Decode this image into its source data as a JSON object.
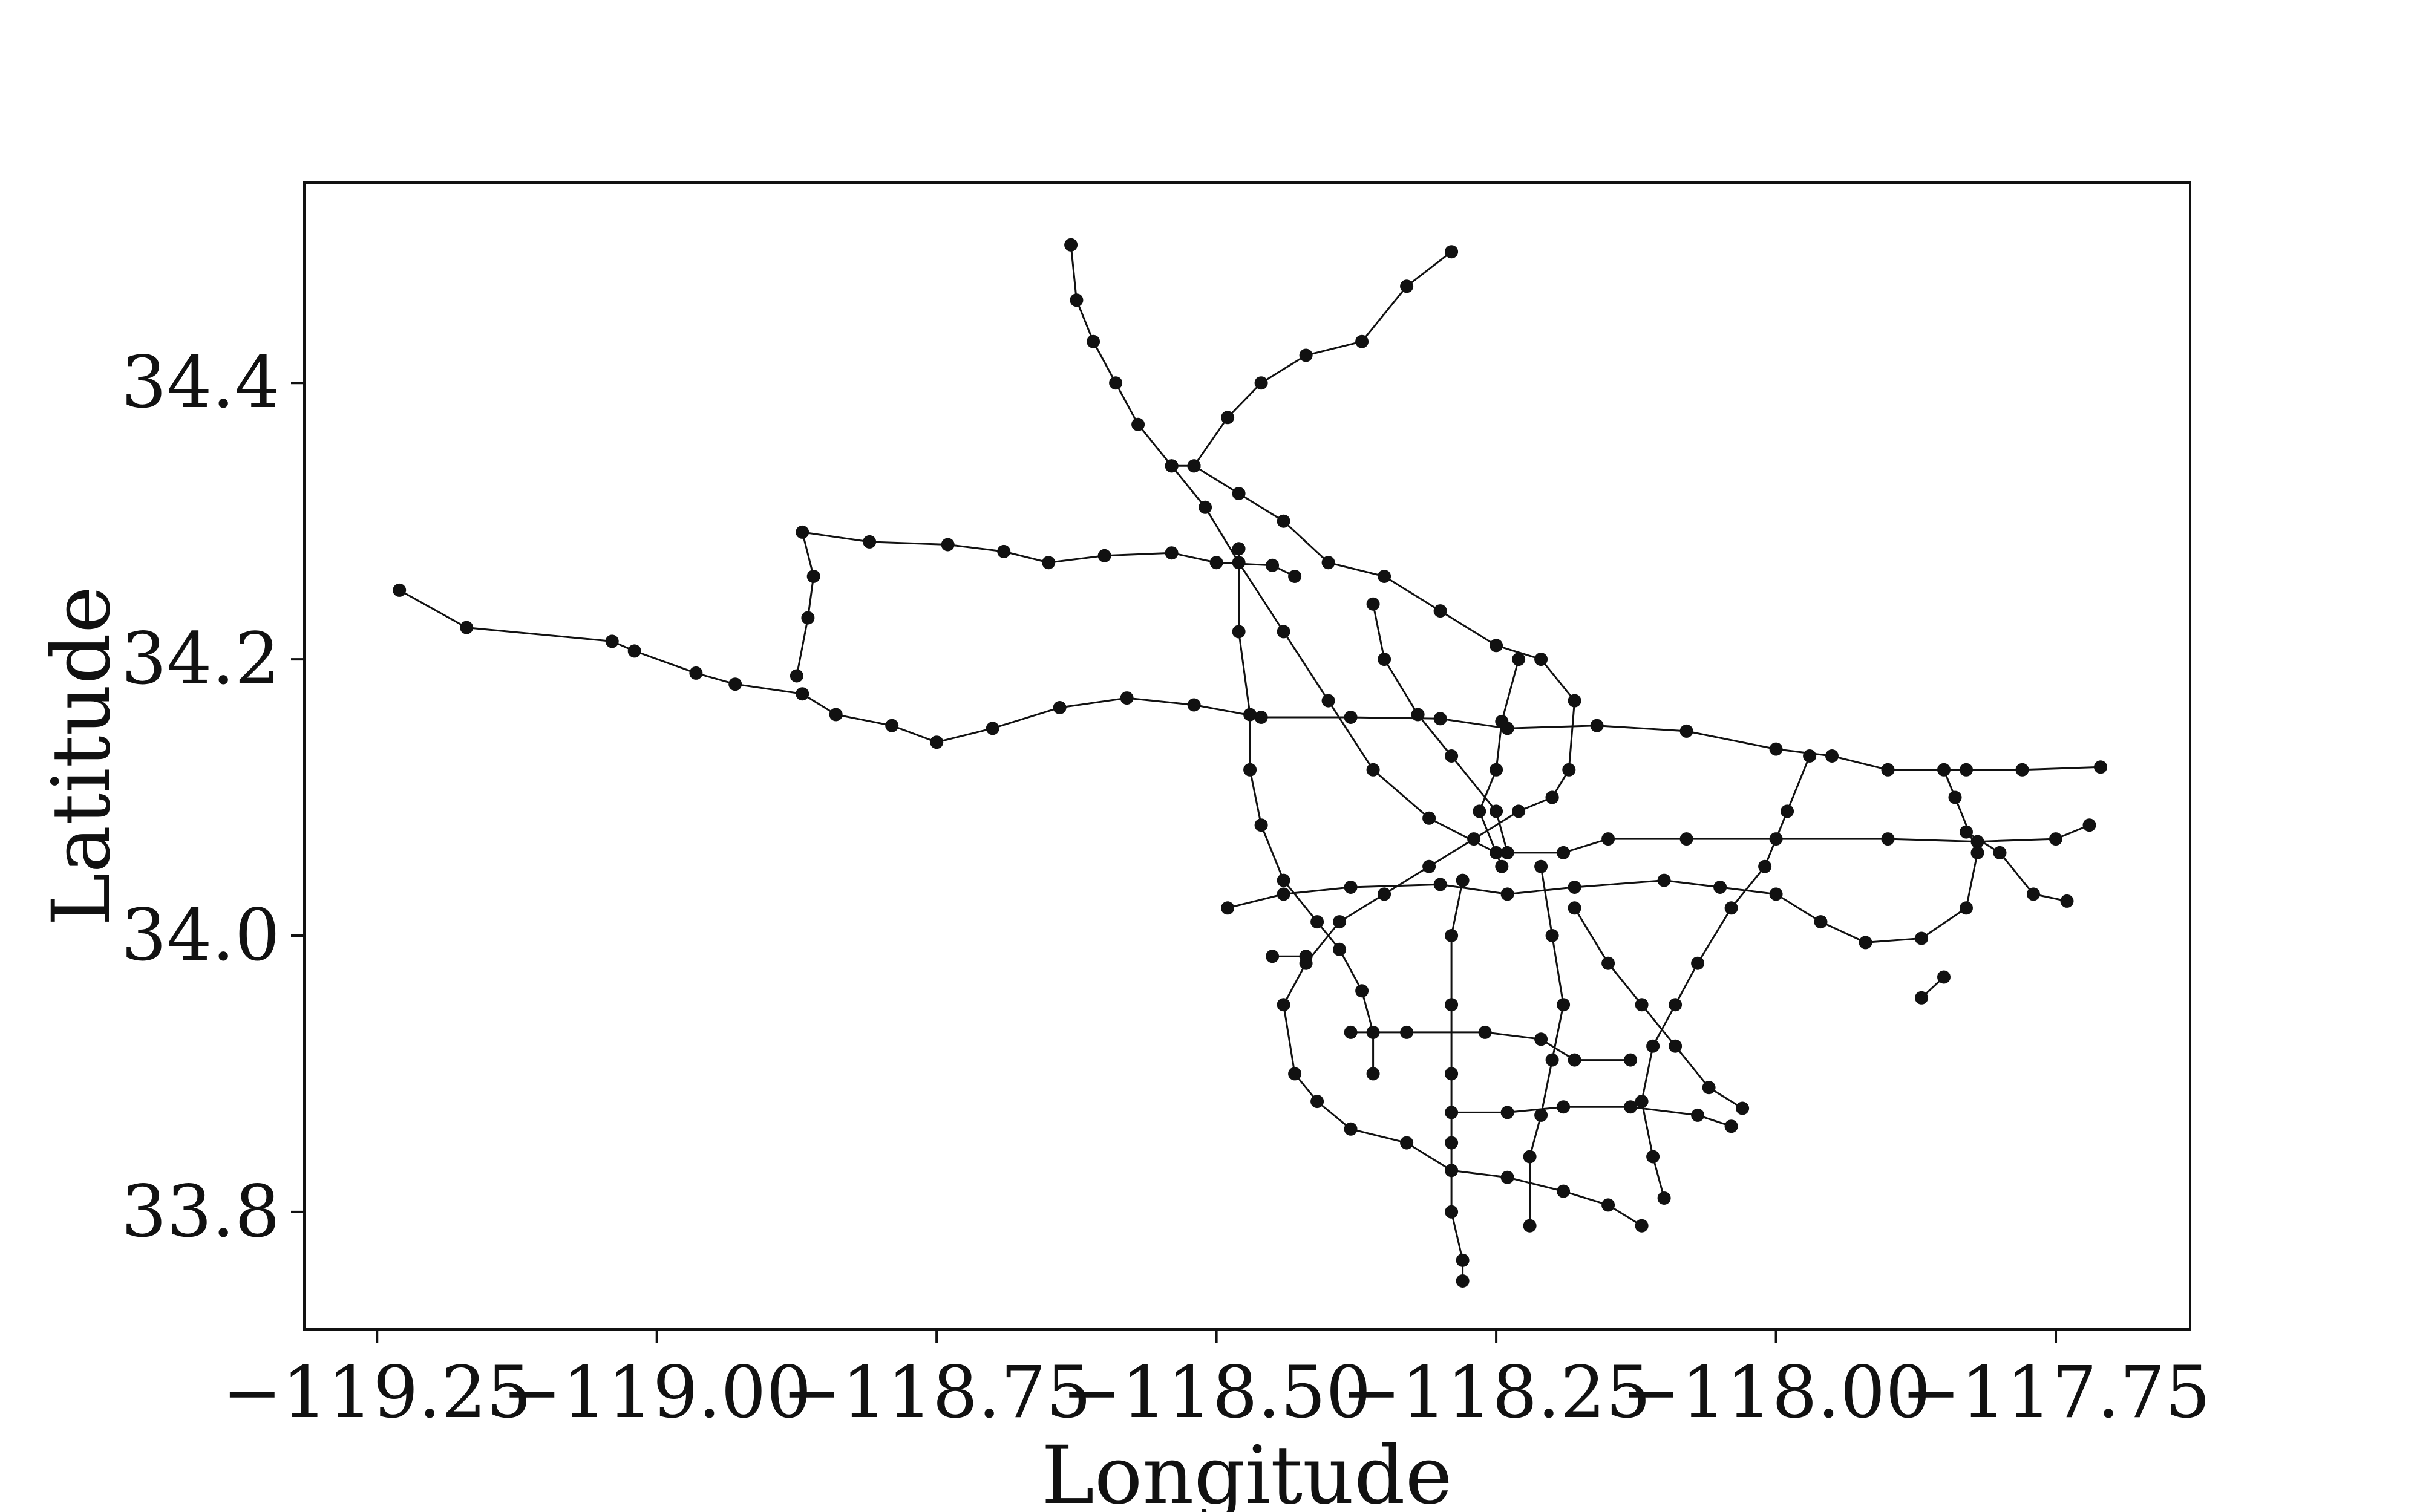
{
  "chart_data": {
    "type": "line",
    "title": "",
    "xlabel": "Longitude",
    "ylabel": "Latitude",
    "xlim": [
      -119.315,
      -117.63
    ],
    "ylim": [
      33.715,
      34.545
    ],
    "xticks": [
      -119.25,
      -119.0,
      -118.75,
      -118.5,
      -118.25,
      -118.0,
      -117.75
    ],
    "xtick_labels": [
      "−119.25",
      "−119.00",
      "−118.75",
      "−118.50",
      "−118.25",
      "−118.00",
      "−117.75"
    ],
    "yticks": [
      33.8,
      34.0,
      34.2,
      34.4
    ],
    "ytick_labels": [
      "33.8",
      "34.0",
      "34.2",
      "34.4"
    ],
    "grid": false,
    "legend": "none",
    "marker_color": "#111111",
    "line_color": "#111111",
    "series": [
      {
        "points": [
          [
            -119.23,
            34.25
          ],
          [
            -119.17,
            34.223
          ],
          [
            -119.04,
            34.213
          ],
          [
            -119.02,
            34.206
          ],
          [
            -118.965,
            34.19
          ],
          [
            -118.93,
            34.182
          ],
          [
            -118.87,
            34.175
          ],
          [
            -118.84,
            34.16
          ],
          [
            -118.79,
            34.152
          ],
          [
            -118.75,
            34.14
          ],
          [
            -118.7,
            34.15
          ],
          [
            -118.64,
            34.165
          ],
          [
            -118.58,
            34.172
          ],
          [
            -118.52,
            34.167
          ],
          [
            -118.46,
            34.158
          ],
          [
            -118.38,
            34.158
          ],
          [
            -118.3,
            34.157
          ],
          [
            -118.24,
            34.15
          ],
          [
            -118.16,
            34.152
          ],
          [
            -118.08,
            34.148
          ],
          [
            -118.0,
            34.135
          ],
          [
            -117.95,
            34.13
          ],
          [
            -117.9,
            34.12
          ],
          [
            -117.83,
            34.12
          ],
          [
            -117.78,
            34.12
          ],
          [
            -117.71,
            34.122
          ]
        ]
      },
      {
        "points": [
          [
            -118.875,
            34.188
          ],
          [
            -118.865,
            34.23
          ],
          [
            -118.86,
            34.26
          ],
          [
            -118.87,
            34.292
          ],
          [
            -118.81,
            34.285
          ],
          [
            -118.74,
            34.283
          ],
          [
            -118.69,
            34.278
          ],
          [
            -118.65,
            34.27
          ],
          [
            -118.6,
            34.275
          ],
          [
            -118.54,
            34.277
          ],
          [
            -118.5,
            34.27
          ],
          [
            -118.45,
            34.268
          ],
          [
            -118.43,
            34.26
          ]
        ]
      },
      {
        "points": [
          [
            -118.63,
            34.5
          ],
          [
            -118.625,
            34.46
          ],
          [
            -118.61,
            34.43
          ],
          [
            -118.59,
            34.4
          ],
          [
            -118.57,
            34.37
          ],
          [
            -118.54,
            34.34
          ],
          [
            -118.51,
            34.31
          ],
          [
            -118.48,
            34.27
          ],
          [
            -118.44,
            34.22
          ],
          [
            -118.4,
            34.17
          ],
          [
            -118.36,
            34.12
          ],
          [
            -118.31,
            34.085
          ],
          [
            -118.25,
            34.06
          ],
          [
            -118.19,
            34.06
          ],
          [
            -118.15,
            34.07
          ],
          [
            -118.08,
            34.07
          ],
          [
            -118.0,
            34.07
          ],
          [
            -117.9,
            34.07
          ],
          [
            -117.82,
            34.068
          ],
          [
            -117.75,
            34.07
          ],
          [
            -117.72,
            34.08
          ]
        ]
      },
      {
        "points": [
          [
            -118.29,
            34.495
          ],
          [
            -118.33,
            34.47
          ],
          [
            -118.37,
            34.43
          ],
          [
            -118.42,
            34.42
          ],
          [
            -118.46,
            34.4
          ],
          [
            -118.49,
            34.375
          ],
          [
            -118.52,
            34.34
          ],
          [
            -118.54,
            34.34
          ]
        ]
      },
      {
        "points": [
          [
            -118.52,
            34.34
          ],
          [
            -118.48,
            34.32
          ],
          [
            -118.44,
            34.3
          ],
          [
            -118.4,
            34.27
          ],
          [
            -118.35,
            34.26
          ],
          [
            -118.3,
            34.235
          ],
          [
            -118.25,
            34.21
          ],
          [
            -118.21,
            34.2
          ],
          [
            -118.18,
            34.17
          ],
          [
            -118.185,
            34.12
          ],
          [
            -118.2,
            34.1
          ]
        ]
      },
      {
        "points": [
          [
            -118.2,
            34.1
          ],
          [
            -118.23,
            34.09
          ],
          [
            -118.27,
            34.07
          ],
          [
            -118.31,
            34.05
          ],
          [
            -118.35,
            34.03
          ],
          [
            -118.39,
            34.01
          ],
          [
            -118.42,
            33.98
          ],
          [
            -118.44,
            33.95
          ],
          [
            -118.43,
            33.9
          ],
          [
            -118.41,
            33.88
          ],
          [
            -118.38,
            33.86
          ],
          [
            -118.33,
            33.85
          ],
          [
            -118.29,
            33.83
          ],
          [
            -118.24,
            33.825
          ],
          [
            -118.19,
            33.815
          ],
          [
            -118.15,
            33.805
          ],
          [
            -118.12,
            33.79
          ]
        ]
      },
      {
        "points": [
          [
            -118.48,
            34.28
          ],
          [
            -118.48,
            34.22
          ],
          [
            -118.47,
            34.16
          ],
          [
            -118.47,
            34.12
          ],
          [
            -118.46,
            34.08
          ],
          [
            -118.44,
            34.04
          ],
          [
            -118.41,
            34.01
          ],
          [
            -118.39,
            33.99
          ],
          [
            -118.37,
            33.96
          ],
          [
            -118.36,
            33.93
          ],
          [
            -118.36,
            33.9
          ]
        ]
      },
      {
        "points": [
          [
            -118.36,
            34.24
          ],
          [
            -118.35,
            34.2
          ],
          [
            -118.32,
            34.16
          ],
          [
            -118.29,
            34.13
          ],
          [
            -118.25,
            34.09
          ],
          [
            -118.24,
            34.06
          ]
        ]
      },
      {
        "points": [
          [
            -118.49,
            34.02
          ],
          [
            -118.44,
            34.03
          ],
          [
            -118.38,
            34.035
          ],
          [
            -118.3,
            34.037
          ],
          [
            -118.24,
            34.03
          ],
          [
            -118.18,
            34.035
          ],
          [
            -118.1,
            34.04
          ],
          [
            -118.05,
            34.035
          ],
          [
            -118.0,
            34.03
          ],
          [
            -117.96,
            34.01
          ],
          [
            -117.92,
            33.995
          ],
          [
            -117.87,
            33.998
          ],
          [
            -117.83,
            34.02
          ],
          [
            -117.82,
            34.06
          ],
          [
            -117.84,
            34.1
          ],
          [
            -117.85,
            34.12
          ]
        ]
      },
      {
        "points": [
          [
            -118.28,
            34.04
          ],
          [
            -118.29,
            34.0
          ],
          [
            -118.29,
            33.95
          ],
          [
            -118.29,
            33.9
          ],
          [
            -118.29,
            33.85
          ],
          [
            -118.29,
            33.8
          ],
          [
            -118.28,
            33.765
          ],
          [
            -118.28,
            33.75
          ]
        ]
      },
      {
        "points": [
          [
            -118.38,
            33.93
          ],
          [
            -118.33,
            33.93
          ],
          [
            -118.26,
            33.93
          ],
          [
            -118.21,
            33.925
          ],
          [
            -118.18,
            33.91
          ],
          [
            -118.13,
            33.91
          ]
        ]
      },
      {
        "points": [
          [
            -118.29,
            33.872
          ],
          [
            -118.24,
            33.872
          ],
          [
            -118.19,
            33.876
          ],
          [
            -118.13,
            33.876
          ],
          [
            -118.07,
            33.87
          ],
          [
            -118.04,
            33.862
          ]
        ]
      },
      {
        "points": [
          [
            -118.18,
            34.02
          ],
          [
            -118.15,
            33.98
          ],
          [
            -118.12,
            33.95
          ],
          [
            -118.09,
            33.92
          ],
          [
            -118.06,
            33.89
          ],
          [
            -118.03,
            33.875
          ]
        ]
      },
      {
        "points": [
          [
            -117.97,
            34.13
          ],
          [
            -117.99,
            34.09
          ],
          [
            -118.01,
            34.05
          ],
          [
            -118.04,
            34.02
          ],
          [
            -118.07,
            33.98
          ],
          [
            -118.09,
            33.95
          ],
          [
            -118.11,
            33.92
          ],
          [
            -118.12,
            33.88
          ],
          [
            -118.11,
            33.84
          ],
          [
            -118.1,
            33.81
          ]
        ]
      },
      {
        "points": [
          [
            -118.21,
            34.05
          ],
          [
            -118.2,
            34.0
          ],
          [
            -118.19,
            33.95
          ],
          [
            -118.2,
            33.91
          ],
          [
            -118.21,
            33.87
          ],
          [
            -118.22,
            33.84
          ],
          [
            -118.22,
            33.79
          ]
        ]
      },
      {
        "points": [
          [
            -118.23,
            34.2
          ],
          [
            -118.245,
            34.155
          ],
          [
            -118.25,
            34.12
          ],
          [
            -118.265,
            34.09
          ],
          [
            -118.245,
            34.05
          ]
        ]
      },
      {
        "points": [
          [
            -117.83,
            34.075
          ],
          [
            -117.8,
            34.06
          ],
          [
            -117.77,
            34.03
          ],
          [
            -117.74,
            34.025
          ]
        ]
      },
      {
        "points": [
          [
            -117.85,
            33.97
          ],
          [
            -117.87,
            33.955
          ]
        ]
      },
      {
        "points": [
          [
            -118.45,
            33.985
          ],
          [
            -118.42,
            33.985
          ]
        ]
      }
    ]
  }
}
